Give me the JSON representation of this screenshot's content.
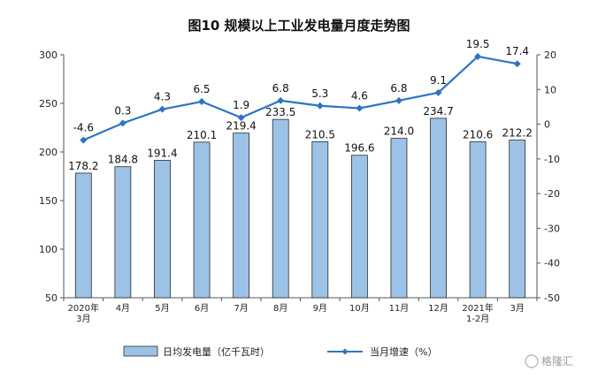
{
  "chart_data": {
    "type": "bar",
    "title": "图10  规模以上工业发电量月度走势图",
    "categories": [
      [
        "2020年",
        "3月"
      ],
      [
        "4月"
      ],
      [
        "5月"
      ],
      [
        "6月"
      ],
      [
        "7月"
      ],
      [
        "8月"
      ],
      [
        "9月"
      ],
      [
        "10月"
      ],
      [
        "11月"
      ],
      [
        "12月"
      ],
      [
        "2021年",
        "1-2月"
      ],
      [
        "3月"
      ]
    ],
    "series": [
      {
        "name": "日均发电量（亿千瓦时）",
        "type": "bar",
        "axis": "left",
        "values": [
          178.2,
          184.8,
          191.4,
          210.1,
          219.4,
          233.5,
          210.5,
          196.6,
          214.0,
          234.7,
          210.6,
          212.2
        ],
        "labels": [
          "178.2",
          "184.8",
          "191.4",
          "210.1",
          "219.4",
          "233.5",
          "210.5",
          "196.6",
          "214.0",
          "234.7",
          "210.6",
          "212.2"
        ]
      },
      {
        "name": "当月增速（%）",
        "type": "line",
        "axis": "right",
        "values": [
          -4.6,
          0.3,
          4.3,
          6.5,
          1.9,
          6.8,
          5.3,
          4.6,
          6.8,
          9.1,
          19.5,
          17.4
        ],
        "labels": [
          "-4.6",
          "0.3",
          "4.3",
          "6.5",
          "1.9",
          "6.8",
          "5.3",
          "4.6",
          "6.8",
          "9.1",
          "19.5",
          "17.4"
        ]
      }
    ],
    "y_left": {
      "range": [
        50,
        300
      ],
      "ticks": [
        50,
        100,
        150,
        200,
        250,
        300
      ],
      "tick_labels": [
        "50",
        "100",
        "150",
        "200",
        "250",
        "300"
      ]
    },
    "y_right": {
      "range": [
        -50,
        20
      ],
      "ticks": [
        -50,
        -40,
        -30,
        -20,
        -10,
        0,
        10,
        20
      ],
      "tick_labels": [
        "-50",
        "-40",
        "-30",
        "-20",
        "-10",
        "0",
        "10",
        "20"
      ]
    },
    "grid": false,
    "legend_position": "bottom",
    "colors": {
      "bar_fill": "#9cc3e6",
      "bar_stroke": "#2a2a2a",
      "line": "#2e74c4"
    }
  },
  "watermark": {
    "text": "格隆汇"
  }
}
